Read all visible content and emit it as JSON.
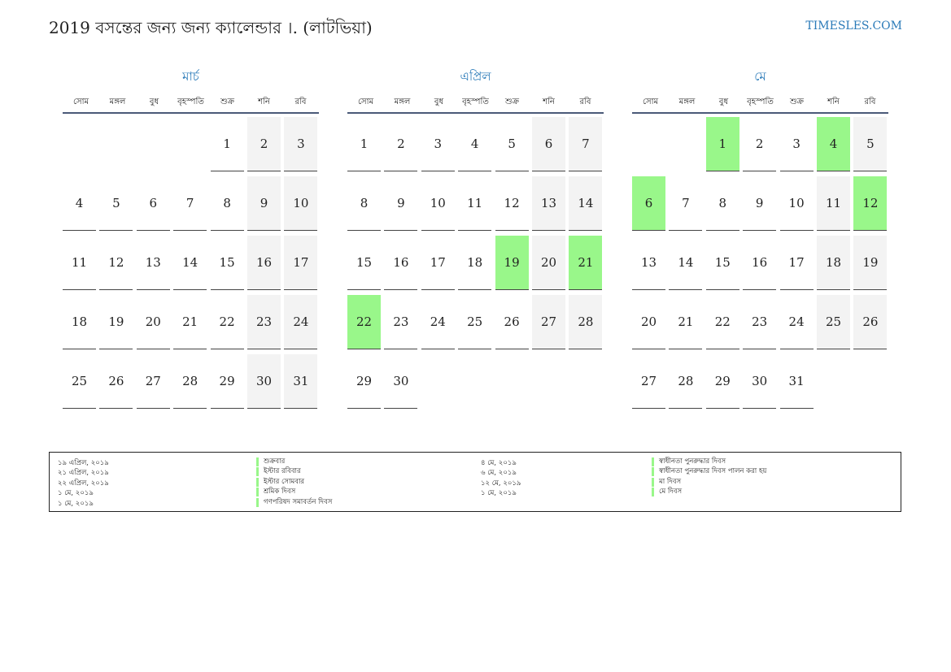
{
  "header": {
    "title": "2019 বসন্তের জন্য জন্য ক্যালেন্ডার ।. (লাটভিয়া)",
    "site": "TIMESLES.COM"
  },
  "weekdays": [
    "সোম",
    "মঙ্গল",
    "বুধ",
    "বৃহস্পতি",
    "শুক্র",
    "শনি",
    "রবি"
  ],
  "months": [
    {
      "name": "মার্চ",
      "start_offset": 4,
      "days": 31,
      "holidays": []
    },
    {
      "name": "এপ্রিল",
      "start_offset": 0,
      "days": 30,
      "holidays": [
        19,
        21,
        22
      ]
    },
    {
      "name": "মে",
      "start_offset": 2,
      "days": 31,
      "holidays": [
        1,
        4,
        6,
        12
      ]
    }
  ],
  "legend": [
    {
      "date": "১৯ এপ্রিল, ২০১৯",
      "name": "শুক্রবার"
    },
    {
      "date": "২১ এপ্রিল, ২০১৯",
      "name": "ইস্টার রবিবার"
    },
    {
      "date": "২২ এপ্রিল, ২০১৯",
      "name": "ইস্টার সোমবার"
    },
    {
      "date": "১ মে, ২০১৯",
      "name": "শ্রমিক দিবস"
    },
    {
      "date": "১ মে, ২০১৯",
      "name": "গণপরিষদ সমাবর্তন দিবস"
    },
    {
      "date": "৪ মে, ২০১৯",
      "name": "স্বাধীনতা পুনরুদ্ধার দিবস"
    },
    {
      "date": "৬ মে, ২০১৯",
      "name": "স্বাধীনতা পুনরুদ্ধার দিবস পালন করা হয়"
    },
    {
      "date": "১২ মে, ২০১৯",
      "name": "মা দিবস"
    },
    {
      "date": "১ মে, ২০১৯",
      "name": "মে দিবস"
    }
  ]
}
